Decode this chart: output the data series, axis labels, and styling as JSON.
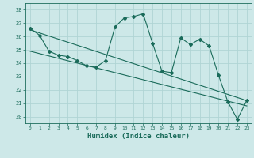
{
  "xlabel": "Humidex (Indice chaleur)",
  "xlim": [
    -0.5,
    23.5
  ],
  "ylim": [
    19.5,
    28.5
  ],
  "yticks": [
    20,
    21,
    22,
    23,
    24,
    25,
    26,
    27,
    28
  ],
  "xticks": [
    0,
    1,
    2,
    3,
    4,
    5,
    6,
    7,
    8,
    9,
    10,
    11,
    12,
    13,
    14,
    15,
    16,
    17,
    18,
    19,
    20,
    21,
    22,
    23
  ],
  "bg_color": "#cde8e8",
  "grid_color": "#b0d4d4",
  "line_color": "#1a6b5a",
  "main_x": [
    0,
    1,
    2,
    3,
    4,
    5,
    6,
    7,
    8,
    9,
    10,
    11,
    12,
    13,
    14,
    15,
    16,
    17,
    18,
    19,
    20,
    21,
    22,
    23
  ],
  "main_y": [
    26.6,
    26.1,
    24.9,
    24.6,
    24.5,
    24.2,
    23.8,
    23.7,
    24.2,
    26.7,
    27.4,
    27.5,
    27.7,
    25.5,
    23.4,
    23.3,
    25.9,
    25.4,
    25.8,
    25.3,
    23.1,
    21.1,
    19.8,
    21.2
  ],
  "trend1_x": [
    0,
    23
  ],
  "trend1_y": [
    26.5,
    21.2
  ],
  "trend2_x": [
    0,
    23
  ],
  "trend2_y": [
    24.9,
    20.8
  ]
}
